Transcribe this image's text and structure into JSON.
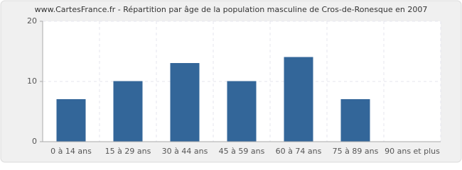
{
  "chart_data": {
    "type": "bar",
    "title": "www.CartesFrance.fr - Répartition par âge de la population masculine de Cros-de-Ronesque en 2007",
    "categories": [
      "0 à 14 ans",
      "15 à 29 ans",
      "30 à 44 ans",
      "45 à 59 ans",
      "60 à 74 ans",
      "75 à 89 ans",
      "90 ans et plus"
    ],
    "values": [
      7,
      10,
      13,
      10,
      14,
      7,
      0
    ],
    "color": "#336699",
    "ylim": [
      0,
      20
    ],
    "yticks": [
      0,
      10,
      20
    ],
    "grid": true
  }
}
